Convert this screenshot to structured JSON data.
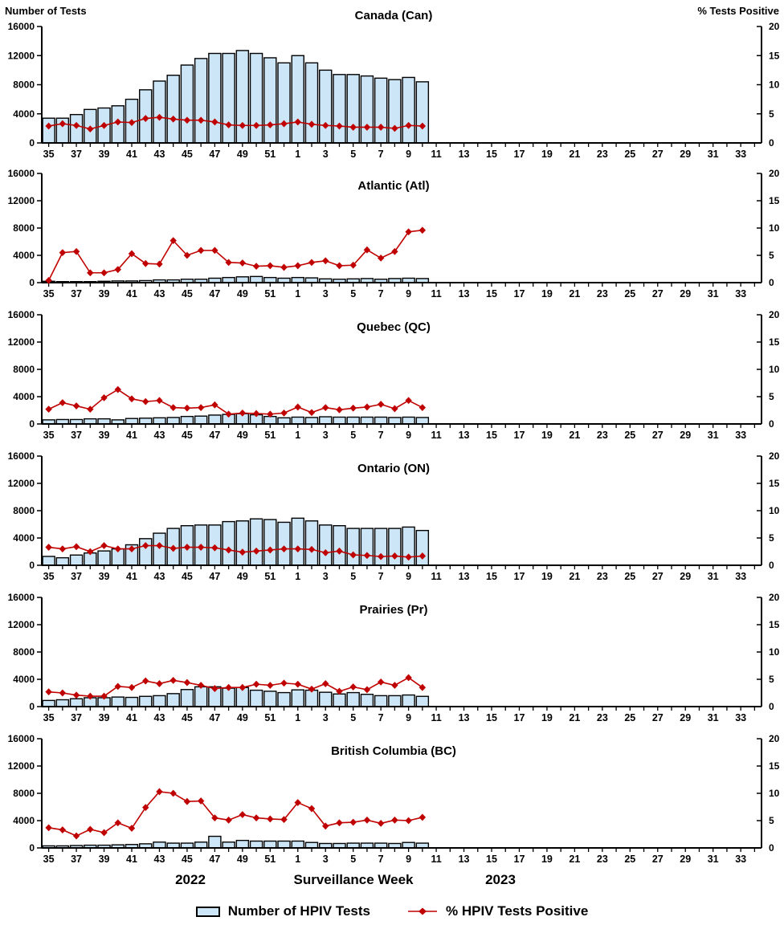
{
  "labels": {
    "left_axis_title": "Number of Tests",
    "right_axis_title": "% Tests Positive",
    "x_axis_title": "Surveillance Week",
    "year_left": "2022",
    "year_right": "2023"
  },
  "legend": {
    "tests_label": "Number of HPIV Tests",
    "positive_label": "% HPIV Tests Positive"
  },
  "colors": {
    "bar_fill": "#CCE6F7",
    "bar_border": "#000000",
    "line": "#C00000",
    "axis": "#000000"
  },
  "chart_data": {
    "type": "bar+line small multiples",
    "x_label": "Surveillance Week",
    "years": [
      "2022",
      "2023"
    ],
    "weeks": [
      35,
      36,
      37,
      38,
      39,
      40,
      41,
      42,
      43,
      44,
      45,
      46,
      47,
      48,
      49,
      50,
      51,
      52,
      1,
      2,
      3,
      4,
      5,
      6,
      7,
      8,
      9,
      10,
      11,
      12,
      13,
      14,
      15,
      16,
      17,
      18,
      19,
      20,
      21,
      22,
      23,
      24,
      25,
      26,
      27,
      28,
      29,
      30,
      31,
      32,
      33,
      34
    ],
    "labeled_weeks": [
      35,
      37,
      39,
      41,
      43,
      45,
      47,
      49,
      51,
      1,
      3,
      5,
      7,
      9,
      11,
      13,
      15,
      17,
      19,
      21,
      23,
      25,
      27,
      29,
      31,
      33
    ],
    "left_axis": {
      "label": "Number of Tests",
      "min": 0,
      "max": 16000,
      "ticks": [
        0,
        4000,
        8000,
        12000,
        16000
      ]
    },
    "right_axis": {
      "label": "% Tests Positive",
      "min": 0,
      "max": 20,
      "ticks": [
        0,
        5,
        10,
        15,
        20
      ]
    },
    "series_legend": [
      "Number of HPIV Tests",
      "% HPIV Tests Positive"
    ],
    "panels": [
      {
        "title": "Canada (Can)",
        "tests": [
          3400,
          3400,
          3900,
          4600,
          4800,
          5100,
          6000,
          7300,
          8500,
          9300,
          10700,
          11600,
          12300,
          12300,
          12700,
          12300,
          11700,
          11000,
          12000,
          11000,
          10000,
          9400,
          9400,
          9200,
          8900,
          8700,
          9000,
          8400
        ],
        "pct_positive": [
          2.9,
          3.3,
          3.0,
          2.4,
          3.0,
          3.6,
          3.5,
          4.2,
          4.4,
          4.1,
          3.9,
          3.9,
          3.6,
          3.1,
          3.0,
          3.0,
          3.1,
          3.3,
          3.6,
          3.2,
          3.0,
          2.9,
          2.7,
          2.7,
          2.7,
          2.5,
          3.0,
          2.9
        ]
      },
      {
        "title": "Atlantic (Atl)",
        "tests": [
          200,
          150,
          150,
          150,
          200,
          250,
          250,
          300,
          400,
          400,
          500,
          500,
          650,
          750,
          850,
          900,
          750,
          650,
          750,
          700,
          550,
          500,
          550,
          600,
          500,
          600,
          650,
          600
        ],
        "pct_positive": [
          0.4,
          5.5,
          5.7,
          1.8,
          1.8,
          2.4,
          5.3,
          3.5,
          3.4,
          7.7,
          5.0,
          5.9,
          5.9,
          3.7,
          3.6,
          3.0,
          3.1,
          2.8,
          3.1,
          3.7,
          4.0,
          3.1,
          3.2,
          6.0,
          4.5,
          5.7,
          9.3,
          9.6
        ]
      },
      {
        "title": "Quebec (QC)",
        "tests": [
          600,
          650,
          650,
          750,
          750,
          600,
          800,
          850,
          900,
          950,
          1100,
          1150,
          1300,
          1400,
          1500,
          1350,
          1100,
          900,
          1000,
          950,
          1050,
          1000,
          1000,
          1000,
          1000,
          950,
          1000,
          950
        ],
        "pct_positive": [
          2.7,
          3.9,
          3.3,
          2.7,
          4.8,
          6.3,
          4.6,
          4.1,
          4.3,
          3.0,
          2.9,
          3.0,
          3.5,
          1.8,
          2.0,
          1.9,
          1.8,
          2.0,
          3.1,
          2.1,
          3.0,
          2.6,
          2.9,
          3.1,
          3.6,
          2.8,
          4.3,
          3.0
        ]
      },
      {
        "title": "Ontario (ON)",
        "tests": [
          1300,
          1100,
          1500,
          1800,
          2100,
          2400,
          3000,
          3900,
          4700,
          5400,
          5800,
          5900,
          5900,
          6400,
          6500,
          6800,
          6700,
          6300,
          6900,
          6500,
          5900,
          5800,
          5400,
          5400,
          5400,
          5400,
          5600,
          5100
        ],
        "pct_positive": [
          3.3,
          3.0,
          3.4,
          2.5,
          3.6,
          3.0,
          3.0,
          3.6,
          3.6,
          3.1,
          3.3,
          3.3,
          3.2,
          2.8,
          2.4,
          2.6,
          2.8,
          3.0,
          3.0,
          2.9,
          2.3,
          2.6,
          1.9,
          1.8,
          1.6,
          1.7,
          1.5,
          1.7
        ]
      },
      {
        "title": "Prairies (Pr)",
        "tests": [
          900,
          1000,
          1150,
          1300,
          1300,
          1400,
          1350,
          1500,
          1600,
          1900,
          2500,
          2900,
          2900,
          2700,
          2800,
          2400,
          2250,
          2050,
          2450,
          2400,
          2100,
          1850,
          2050,
          1800,
          1600,
          1600,
          1700,
          1500
        ],
        "pct_positive": [
          2.7,
          2.5,
          2.1,
          1.9,
          1.9,
          3.7,
          3.5,
          4.7,
          4.2,
          4.8,
          4.4,
          3.9,
          3.3,
          3.5,
          3.5,
          4.1,
          3.9,
          4.3,
          4.1,
          3.2,
          4.2,
          2.8,
          3.6,
          3.1,
          4.5,
          3.9,
          5.3,
          3.5
        ]
      },
      {
        "title": "British Columbia (BC)",
        "tests": [
          300,
          300,
          350,
          400,
          400,
          450,
          500,
          600,
          850,
          700,
          700,
          850,
          1700,
          850,
          1100,
          1000,
          1000,
          1000,
          1000,
          800,
          650,
          650,
          700,
          700,
          700,
          650,
          800,
          700
        ],
        "pct_positive": [
          3.7,
          3.3,
          2.2,
          3.4,
          2.8,
          4.6,
          3.6,
          7.4,
          10.3,
          10.0,
          8.5,
          8.6,
          5.5,
          5.1,
          6.1,
          5.5,
          5.3,
          5.2,
          8.3,
          7.2,
          4.0,
          4.6,
          4.7,
          5.1,
          4.5,
          5.1,
          5.0,
          5.6
        ]
      }
    ]
  }
}
